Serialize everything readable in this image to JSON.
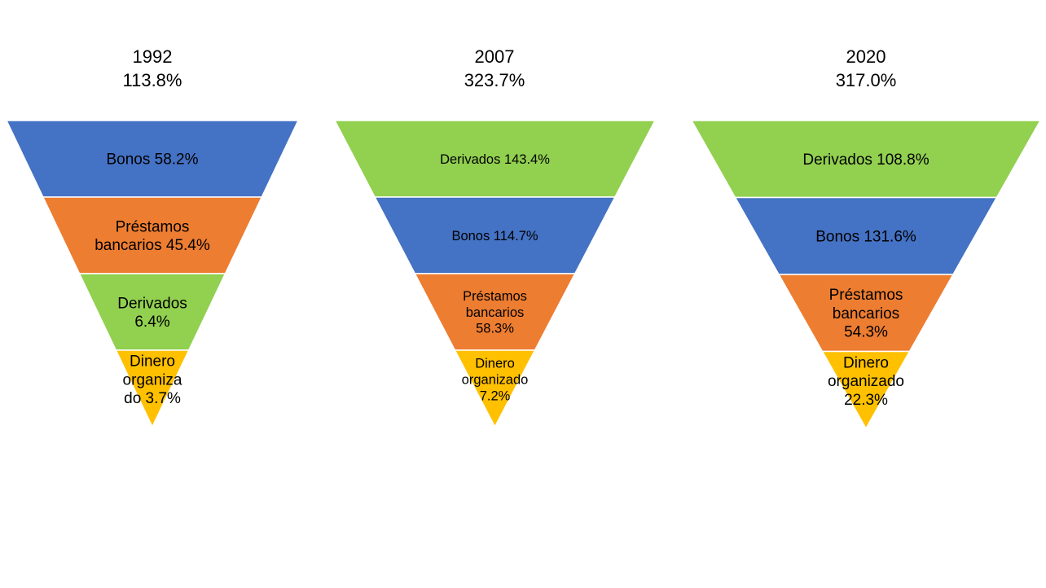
{
  "colors": {
    "Bonos": "#4472C4",
    "Préstamos bancarios": "#ED7D31",
    "Derivados": "#92D050",
    "Dinero organizado": "#FFC000"
  },
  "chart_data": [
    {
      "type": "funnel",
      "title_lines": [
        "1992",
        "113.8%"
      ],
      "segments": [
        {
          "category": "Bonos",
          "value": 58.2,
          "label_lines": [
            "Bonos 58.2%"
          ]
        },
        {
          "category": "Préstamos bancarios",
          "value": 45.4,
          "label_lines": [
            "Préstamos",
            "bancarios 45.4%"
          ]
        },
        {
          "category": "Derivados",
          "value": 6.4,
          "label_lines": [
            "Derivados",
            "6.4%"
          ]
        },
        {
          "category": "Dinero organizado",
          "value": 3.7,
          "label_lines": [
            "Dinero",
            "organiza",
            "do 3.7%"
          ]
        }
      ]
    },
    {
      "type": "funnel",
      "title_lines": [
        "2007",
        "323.7%"
      ],
      "segments": [
        {
          "category": "Derivados",
          "value": 143.4,
          "label_lines": [
            "Derivados 143.4%"
          ]
        },
        {
          "category": "Bonos",
          "value": 114.7,
          "label_lines": [
            "Bonos 114.7%"
          ]
        },
        {
          "category": "Préstamos bancarios",
          "value": 58.3,
          "label_lines": [
            "Préstamos",
            "bancarios",
            "58.3%"
          ]
        },
        {
          "category": "Dinero organizado",
          "value": 7.2,
          "label_lines": [
            "Dinero",
            "organizado",
            "7.2%"
          ]
        }
      ]
    },
    {
      "type": "funnel",
      "title_lines": [
        "2020",
        "317.0%"
      ],
      "segments": [
        {
          "category": "Derivados",
          "value": 108.8,
          "label_lines": [
            "Derivados 108.8%"
          ]
        },
        {
          "category": "Bonos",
          "value": 131.6,
          "label_lines": [
            "Bonos 131.6%"
          ]
        },
        {
          "category": "Préstamos bancarios",
          "value": 54.3,
          "label_lines": [
            "Préstamos",
            "bancarios",
            "54.3%"
          ]
        },
        {
          "category": "Dinero organizado",
          "value": 22.3,
          "label_lines": [
            "Dinero",
            "organizado",
            "22.3%"
          ]
        }
      ]
    }
  ]
}
